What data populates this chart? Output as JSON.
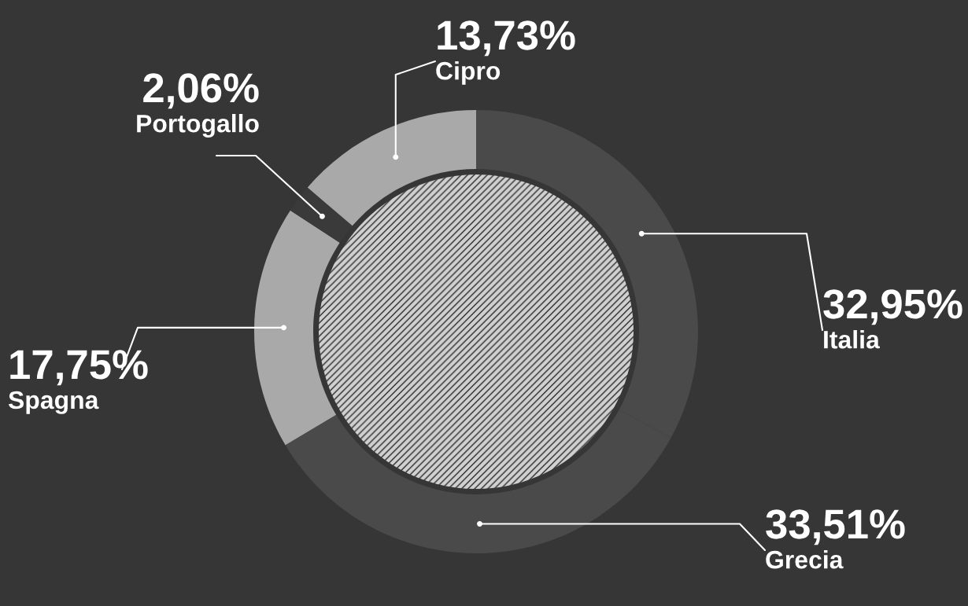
{
  "chart_data": {
    "type": "donut",
    "categories": [
      "Italia",
      "Grecia",
      "Spagna",
      "Portogallo",
      "Cipro"
    ],
    "values": [
      32.95,
      33.51,
      17.75,
      2.06,
      13.73
    ],
    "value_labels": [
      "32,95%",
      "33,51%",
      "17,75%",
      "2,06%",
      "13,73%"
    ],
    "colors": [
      "#4a4a4a",
      "#4a4a4a",
      "#a9a9a9",
      "#3a3a3a",
      "#a9a9a9"
    ]
  }
}
